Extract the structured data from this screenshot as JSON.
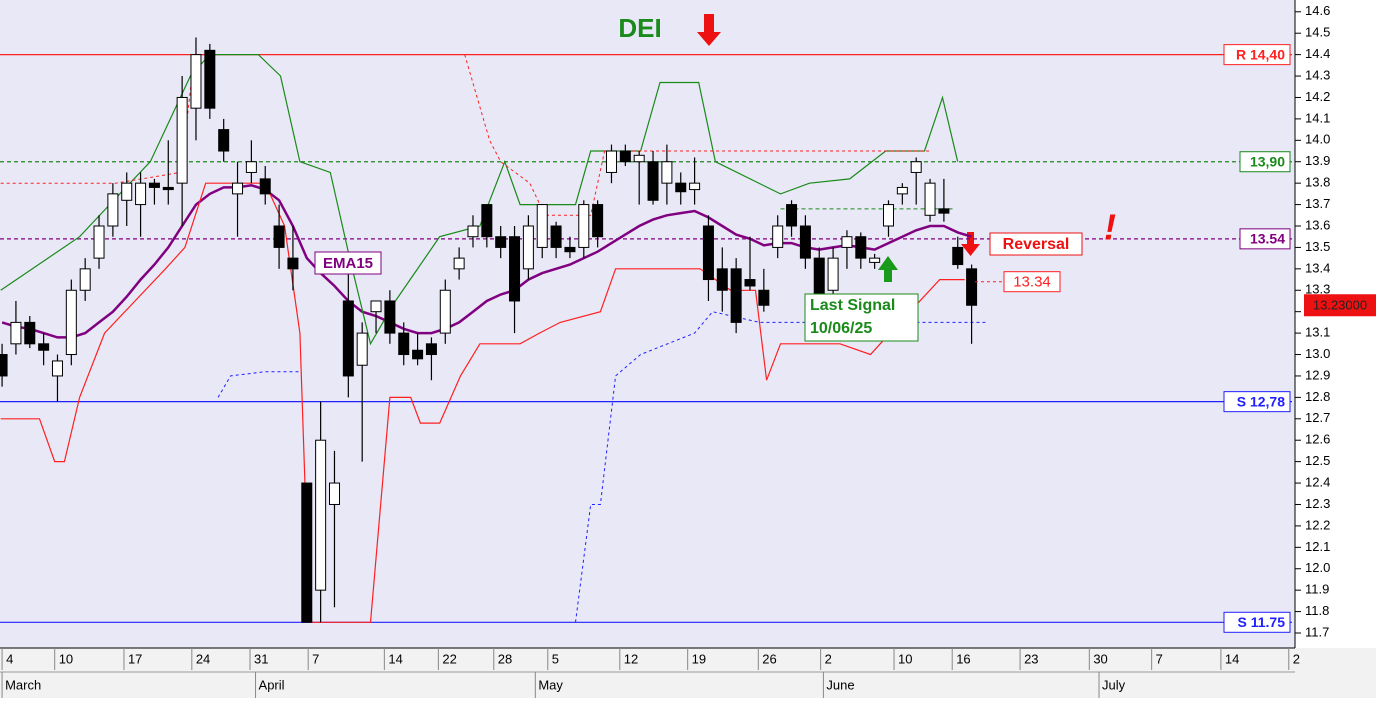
{
  "chart_data": {
    "type": "candlestick",
    "title": "DEI",
    "xlim": [
      -0.15,
      93.35
    ],
    "ylim": [
      11.63,
      14.655
    ],
    "yticks": [
      11.7,
      11.8,
      11.9,
      {
        "value": 12,
        "label": "12.0"
      },
      12.1,
      12.2,
      12.3,
      12.4,
      12.5,
      12.6,
      12.7,
      12.8,
      12.9,
      {
        "value": 13,
        "label": "13.0"
      },
      13.1,
      13.2,
      13.3,
      13.4,
      13.5,
      13.6,
      13.7,
      13.8,
      13.9,
      {
        "value": 14,
        "label": "14.0"
      },
      14.1,
      14.2,
      14.3,
      14.4,
      14.5,
      14.6
    ],
    "xticks": [
      {
        "value": 0,
        "label": "4"
      },
      {
        "value": 3.8,
        "label": "10"
      },
      {
        "value": 8.8,
        "label": "17"
      },
      {
        "value": 13.7,
        "label": "24"
      },
      {
        "value": 17.9,
        "label": "31"
      },
      {
        "value": 22.1,
        "label": "7"
      },
      {
        "value": 27.6,
        "label": "14"
      },
      {
        "value": 31.5,
        "label": "22"
      },
      {
        "value": 35.5,
        "label": "28"
      },
      {
        "value": 39.4,
        "label": "5"
      },
      {
        "value": 44.6,
        "label": "12"
      },
      {
        "value": 49.5,
        "label": "19"
      },
      {
        "value": 54.6,
        "label": "26"
      },
      {
        "value": 59.1,
        "label": "2"
      },
      {
        "value": 64.4,
        "label": "10"
      },
      {
        "value": 68.6,
        "label": "16"
      },
      {
        "value": 73.5,
        "label": "23"
      },
      {
        "value": 78.5,
        "label": "30"
      },
      {
        "value": 83,
        "label": "7"
      },
      {
        "value": 88,
        "label": "14"
      },
      {
        "value": 92.9,
        "label": "2"
      }
    ],
    "months": [
      {
        "value": 0,
        "label": "March"
      },
      {
        "value": 18.3,
        "label": "April"
      },
      {
        "value": 38.5,
        "label": "May"
      },
      {
        "value": 59.3,
        "label": "June"
      },
      {
        "value": 79.2,
        "label": "July"
      }
    ],
    "candles": {
      "open": [
        13.0,
        13.05,
        13.15,
        13.05,
        12.9,
        13.0,
        13.3,
        13.45,
        13.6,
        13.72,
        13.7,
        13.8,
        13.78,
        13.8,
        14.15,
        14.42,
        14.05,
        13.75,
        13.85,
        13.82,
        13.6,
        13.45,
        12.4,
        11.9,
        12.3,
        13.25,
        12.95,
        13.2,
        13.25,
        13.1,
        13.02,
        13.05,
        13.1,
        13.4,
        13.55,
        13.7,
        13.55,
        13.55,
        13.4,
        13.5,
        13.6,
        13.5,
        13.5,
        13.7,
        13.85,
        13.95,
        13.9,
        13.9,
        13.8,
        13.8,
        13.77,
        13.6,
        13.4,
        13.4,
        13.35,
        13.3,
        13.5,
        13.7,
        13.6,
        13.45,
        13.3,
        13.5,
        13.55,
        13.43,
        13.6,
        13.75,
        13.85,
        13.65,
        13.68,
        13.5,
        13.4
      ],
      "high": [
        13.05,
        13.25,
        13.18,
        13.1,
        13.0,
        13.35,
        13.45,
        13.65,
        13.8,
        13.85,
        13.85,
        13.82,
        14.0,
        14.3,
        14.48,
        14.45,
        14.1,
        13.9,
        14.0,
        13.88,
        13.7,
        13.6,
        12.4,
        12.78,
        12.55,
        13.4,
        13.15,
        13.25,
        13.3,
        13.15,
        13.1,
        13.08,
        13.35,
        13.5,
        13.65,
        13.7,
        13.6,
        13.6,
        13.65,
        13.7,
        13.62,
        13.55,
        13.72,
        13.72,
        13.98,
        13.98,
        13.95,
        13.95,
        13.98,
        13.85,
        13.92,
        13.65,
        13.5,
        13.45,
        13.55,
        13.4,
        13.65,
        13.72,
        13.65,
        13.5,
        13.5,
        13.58,
        13.57,
        13.47,
        13.72,
        13.8,
        13.92,
        13.82,
        13.82,
        13.55,
        13.42
      ],
      "low": [
        12.85,
        13.0,
        13.03,
        12.95,
        12.78,
        12.95,
        13.25,
        13.4,
        13.55,
        13.6,
        13.55,
        13.7,
        13.7,
        13.6,
        14.0,
        14.1,
        13.9,
        13.55,
        13.8,
        13.7,
        13.4,
        13.3,
        11.75,
        11.75,
        11.82,
        12.8,
        12.5,
        13.1,
        13.05,
        12.95,
        12.95,
        12.88,
        13.05,
        13.35,
        13.5,
        13.5,
        13.45,
        13.1,
        13.35,
        13.45,
        13.45,
        13.45,
        13.45,
        13.5,
        13.8,
        13.88,
        13.7,
        13.7,
        13.7,
        13.7,
        13.7,
        13.25,
        13.2,
        13.1,
        13.3,
        13.2,
        13.45,
        13.55,
        13.4,
        13.25,
        13.28,
        13.4,
        13.4,
        13.4,
        13.55,
        13.7,
        13.7,
        13.62,
        13.62,
        13.4,
        13.05
      ],
      "close": [
        12.9,
        13.15,
        13.05,
        13.02,
        12.97,
        13.3,
        13.4,
        13.6,
        13.75,
        13.8,
        13.8,
        13.78,
        13.77,
        14.2,
        14.4,
        14.15,
        13.95,
        13.8,
        13.9,
        13.75,
        13.5,
        13.4,
        11.75,
        12.6,
        12.4,
        12.9,
        13.1,
        13.25,
        13.1,
        13.0,
        12.98,
        13.0,
        13.3,
        13.45,
        13.6,
        13.55,
        13.5,
        13.25,
        13.6,
        13.7,
        13.5,
        13.48,
        13.7,
        13.55,
        13.95,
        13.9,
        13.93,
        13.72,
        13.9,
        13.76,
        13.8,
        13.35,
        13.3,
        13.15,
        13.32,
        13.23,
        13.6,
        13.6,
        13.45,
        13.28,
        13.45,
        13.55,
        13.45,
        13.45,
        13.7,
        13.78,
        13.9,
        13.8,
        13.66,
        13.42,
        13.23
      ]
    },
    "lines": [
      {
        "name": "EMA15",
        "color": "#800080",
        "width": 2.5,
        "dash": "none",
        "x": [
          0,
          1,
          2,
          3,
          4,
          5,
          6,
          7,
          8,
          9,
          10,
          11,
          12,
          13,
          14,
          15,
          16,
          17,
          18,
          19,
          20,
          21,
          22,
          23,
          24,
          25,
          26,
          27,
          28,
          29,
          30,
          31,
          32,
          33,
          34,
          35,
          36,
          37,
          38,
          39,
          40,
          41,
          42,
          43,
          44,
          45,
          46,
          47,
          48,
          49,
          50,
          51,
          52,
          53,
          54,
          55,
          56,
          57,
          58,
          59,
          60,
          61,
          62,
          63,
          64,
          65,
          66,
          67,
          68,
          69,
          70
        ],
        "values": [
          13.15,
          13.13,
          13.12,
          13.1,
          13.08,
          13.08,
          13.1,
          13.15,
          13.2,
          13.27,
          13.35,
          13.42,
          13.5,
          13.6,
          13.7,
          13.75,
          13.78,
          13.78,
          13.79,
          13.77,
          13.72,
          13.6,
          13.45,
          13.38,
          13.32,
          13.25,
          13.2,
          13.18,
          13.15,
          13.12,
          13.1,
          13.1,
          13.12,
          13.15,
          13.2,
          13.25,
          13.28,
          13.3,
          13.35,
          13.38,
          13.4,
          13.42,
          13.45,
          13.48,
          13.52,
          13.56,
          13.6,
          13.63,
          13.65,
          13.66,
          13.67,
          13.64,
          13.6,
          13.56,
          13.54,
          13.51,
          13.52,
          13.52,
          13.5,
          13.49,
          13.5,
          13.51,
          13.5,
          13.49,
          13.52,
          13.55,
          13.58,
          13.6,
          13.6,
          13.57,
          13.55
        ]
      },
      {
        "color": "#1a8a1a",
        "width": 1.2,
        "dash": "none",
        "x": [
          -0.1,
          5.6,
          8.5,
          10.7,
          13.6,
          15,
          18.5,
          20.1,
          21.5,
          23.7,
          25.1,
          26.6,
          28.4,
          31.6,
          34.5,
          36.3,
          37.4,
          41.4,
          42.5,
          46.1,
          47.5,
          50.3,
          51.5,
          56.2,
          58.3,
          61.2,
          63.8,
          66.6,
          67.9,
          69
        ],
        "values": [
          13.3,
          13.55,
          13.75,
          13.9,
          14.3,
          14.4,
          14.4,
          14.3,
          13.9,
          13.85,
          13.45,
          13.05,
          13.25,
          13.55,
          13.6,
          13.9,
          13.7,
          13.7,
          13.95,
          13.95,
          14.27,
          14.27,
          13.9,
          13.75,
          13.8,
          13.82,
          13.95,
          13.95,
          14.2,
          13.9
        ]
      },
      {
        "color": "#ff2020",
        "width": 1.2,
        "dash": "none",
        "x": [
          -0.1,
          2.7,
          3.8,
          4.5,
          5.6,
          7.4,
          9.6,
          11.8,
          13.2,
          14.7,
          17.5,
          19,
          20.4,
          21.5,
          22.2,
          26.6,
          28,
          29.5,
          30.2,
          31.6,
          33.1,
          34.5,
          37.4,
          38.8,
          40.3,
          43.2,
          44.3,
          50.4,
          52.6,
          54.4,
          55.2,
          56.2,
          60.5,
          62.7,
          63.4,
          67.7,
          69.5
        ],
        "values": [
          12.7,
          12.7,
          12.5,
          12.5,
          12.8,
          13.1,
          13.25,
          13.4,
          13.5,
          13.8,
          13.8,
          13.8,
          13.6,
          13.1,
          11.75,
          11.75,
          12.8,
          12.8,
          12.68,
          12.68,
          12.9,
          13.05,
          13.05,
          13.1,
          13.15,
          13.2,
          13.4,
          13.4,
          13.3,
          13.3,
          12.88,
          13.05,
          13.05,
          13.0,
          13.05,
          13.35,
          13.35
        ]
      },
      {
        "color": "#ff2020",
        "width": 1,
        "dash": "3 3",
        "x": [
          -0.1,
          8.2,
          12.9,
          13.9,
          15.2,
          null,
          33.4,
          35.2,
          36,
          38.1,
          39.2,
          42.5,
          43.5,
          67
        ],
        "values": [
          13.8,
          13.8,
          13.85,
          14.4,
          14.4,
          null,
          14.4,
          14.0,
          13.9,
          13.8,
          13.65,
          13.65,
          13.95,
          13.95
        ]
      },
      {
        "color": "#2020ff",
        "width": 1,
        "dash": "3 3",
        "x": [
          15.6,
          16.5,
          19,
          21.5,
          null,
          41.4,
          42.5,
          43.2,
          44.3,
          46.1,
          50,
          51.3,
          54.7,
          71
        ],
        "values": [
          12.8,
          12.9,
          12.92,
          12.92,
          null,
          11.75,
          12.3,
          12.3,
          12.9,
          13.0,
          13.1,
          13.2,
          13.15,
          13.15
        ]
      },
      {
        "color": "#1a8a1a",
        "width": 1,
        "dash": "4 3",
        "x": [
          56.2,
          68.8
        ],
        "values": [
          13.68,
          13.68
        ]
      }
    ],
    "levels": [
      {
        "value": 14.4,
        "label": "R 14,40",
        "color": "#ff2020",
        "dash": "none"
      },
      {
        "value": 13.9,
        "label": "13,90",
        "color": "#1a8a1a",
        "dash": "4 3"
      },
      {
        "value": 13.54,
        "label": "13.54",
        "color": "#800080",
        "dash": "4 3"
      },
      {
        "value": 12.78,
        "label": "S 12,78",
        "color": "#2020ff",
        "dash": "none"
      },
      {
        "value": 11.75,
        "label": "S 11.75",
        "color": "#2020ff",
        "dash": "none"
      }
    ],
    "signal_level": {
      "value": 13.34,
      "label": "13.34",
      "color": "#ff2020"
    },
    "last_price": {
      "value": 13.23,
      "label": "13.23000"
    },
    "reversal": "Reversal",
    "exclamation": "!",
    "last_signal": [
      "Last Signal",
      "10/06/25"
    ]
  }
}
